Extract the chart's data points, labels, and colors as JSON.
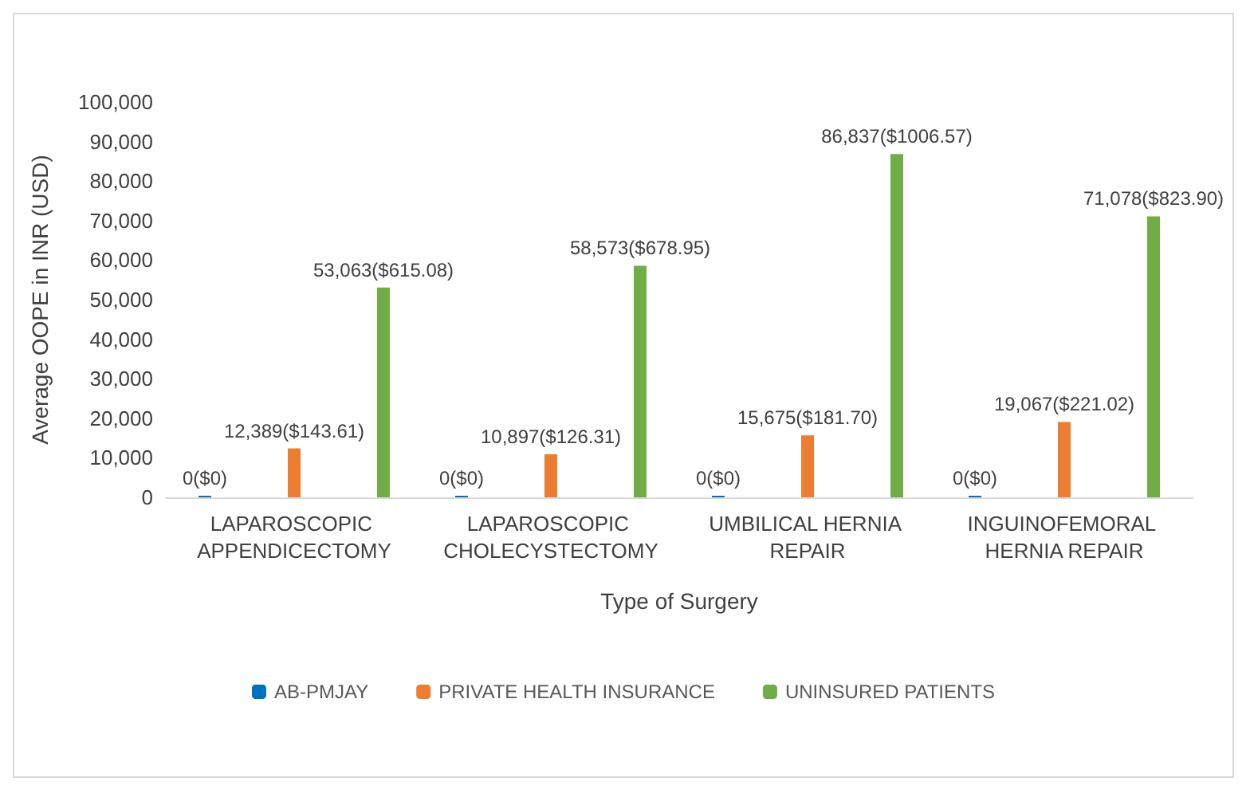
{
  "chart_data": {
    "type": "bar",
    "xlabel": "Type of Surgery",
    "ylabel": "Average OOPE in INR (USD)",
    "categories": [
      "LAPAROSCOPIC APPENDICECTOMY",
      "LAPAROSCOPIC CHOLECYSTECTOMY",
      "UMBILICAL HERNIA REPAIR",
      "INGUINOFEMORAL HERNIA REPAIR"
    ],
    "series": [
      {
        "name": "AB-PMJAY",
        "color": "#0070c0",
        "values": [
          0,
          0,
          0,
          0
        ],
        "value_labels": [
          "0($0)",
          "0($0)",
          "0($0)",
          "0($0)"
        ]
      },
      {
        "name": "PRIVATE HEALTH INSURANCE",
        "color": "#ed7d31",
        "values": [
          12389,
          10897,
          15675,
          19067
        ],
        "value_labels": [
          "12,389($143.61)",
          "10,897($126.31)",
          "15,675($181.70)",
          "19,067($221.02)"
        ]
      },
      {
        "name": "UNINSURED PATIENTS",
        "color": "#70ad47",
        "values": [
          53063,
          58573,
          86837,
          71078
        ],
        "value_labels": [
          "53,063($615.08)",
          "58,573($678.95)",
          "86,837($1006.57)",
          "71,078($823.90)"
        ]
      }
    ],
    "ylim": [
      0,
      100000
    ],
    "yticks": [
      0,
      {
        "value": 10000,
        "label": "10,000"
      },
      {
        "value": 20000,
        "label": "20,000"
      },
      {
        "value": 30000,
        "label": "30,000"
      },
      {
        "value": 40000,
        "label": "40,000"
      },
      {
        "value": 50000,
        "label": "50,000"
      },
      {
        "value": 60000,
        "label": "60,000"
      },
      {
        "value": 70000,
        "label": "70,000"
      },
      {
        "value": 80000,
        "label": "80,000"
      },
      {
        "value": 90000,
        "label": "90,000"
      },
      {
        "value": 100000,
        "label": "100,000"
      }
    ],
    "grid": false,
    "legend": "bottom"
  }
}
